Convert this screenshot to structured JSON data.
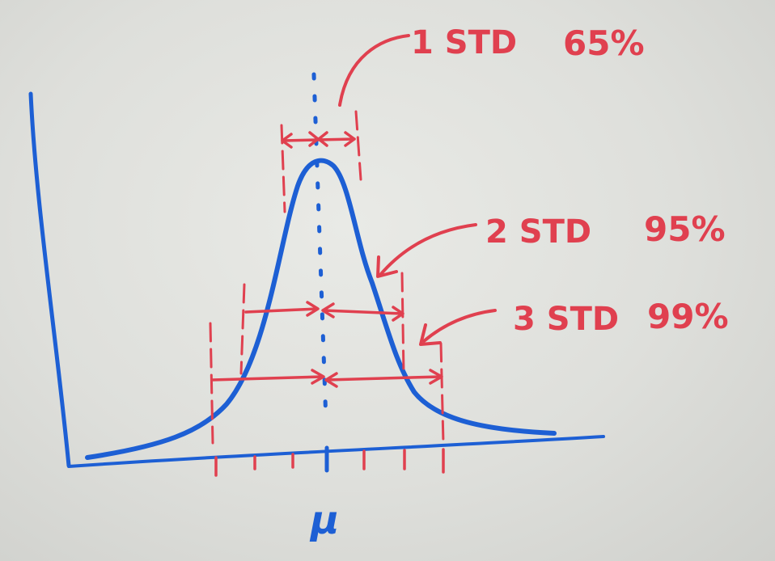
{
  "annotations": [
    {
      "id": "one-std",
      "std_text": "1 STD",
      "pct_text": "65%"
    },
    {
      "id": "two-std",
      "std_text": "2 STD",
      "pct_text": "95%"
    },
    {
      "id": "three-std",
      "std_text": "3 STD",
      "pct_text": "99%"
    }
  ],
  "mean_label": "μ",
  "colors": {
    "board": "#e3e4e0",
    "blue_marker": "#1d5fd4",
    "red_marker": "#e0404f"
  }
}
